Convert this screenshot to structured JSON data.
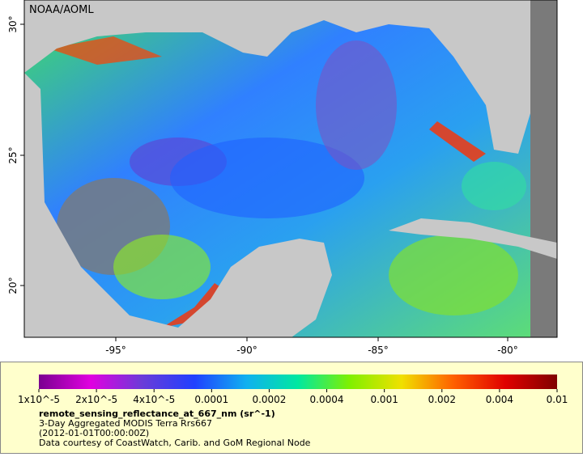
{
  "map": {
    "credit": "NOAA/AOML",
    "lat_labels": [
      "30°",
      "25°",
      "20°"
    ],
    "lon_labels": [
      "-95°",
      "-90°",
      "-85°",
      "-80°"
    ]
  },
  "legend": {
    "colorbar_labels": [
      "1x10^-5",
      "2x10^-5",
      "4x10^-5",
      "0.0001",
      "0.0002",
      "0.0004",
      "0.001",
      "0.002",
      "0.004",
      "0.01"
    ],
    "variable": "remote_sensing_reflectance_at_667_nm (sr^-1)",
    "lines": [
      "3-Day Aggregated MODIS Terra Rrs667",
      "(2012-01-01T00:00:00Z)",
      "Data courtesy of CoastWatch, Carib. and GoM Regional Node"
    ]
  }
}
